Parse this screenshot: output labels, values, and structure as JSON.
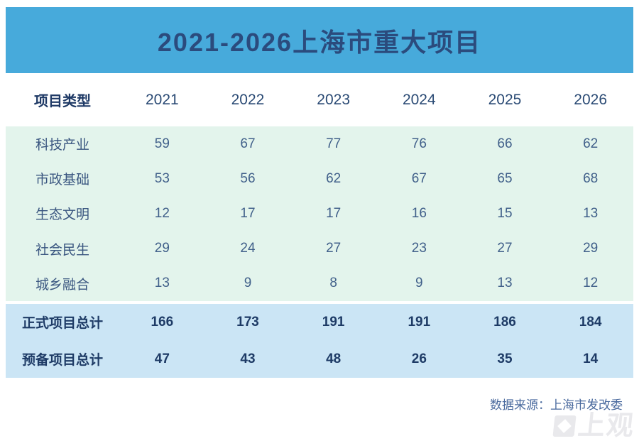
{
  "banner": {
    "title": "2021-2026上海市重大项目"
  },
  "chart_data": {
    "type": "table",
    "title": "2021-2026上海市重大项目",
    "columns": [
      "项目类型",
      "2021",
      "2022",
      "2023",
      "2024",
      "2025",
      "2026"
    ],
    "rows": [
      {
        "label": "科技产业",
        "values": [
          59,
          67,
          77,
          76,
          66,
          62
        ]
      },
      {
        "label": "市政基础",
        "values": [
          53,
          56,
          62,
          67,
          65,
          68
        ]
      },
      {
        "label": "生态文明",
        "values": [
          12,
          17,
          17,
          16,
          15,
          13
        ]
      },
      {
        "label": "社会民生",
        "values": [
          29,
          24,
          27,
          23,
          27,
          29
        ]
      },
      {
        "label": "城乡融合",
        "values": [
          13,
          9,
          8,
          9,
          13,
          12
        ]
      }
    ],
    "totals": [
      {
        "label": "正式项目总计",
        "values": [
          166,
          173,
          191,
          191,
          186,
          184
        ]
      },
      {
        "label": "预备项目总计",
        "values": [
          47,
          43,
          48,
          26,
          35,
          14
        ]
      }
    ],
    "source_note": "数据来源：上海市发改委",
    "layout": {
      "grid": "off",
      "header_position": "top",
      "totals_position": "bottom"
    }
  },
  "watermark": {
    "text": "上观"
  },
  "colors": {
    "banner_bg": "#47AADB",
    "banner_text": "#2B4B7D",
    "header_text": "#1F3A66",
    "body_bg": "#E3F4EC",
    "body_text": "#41608A",
    "totals_bg": "#CBE5F5",
    "totals_text": "#1E3B66",
    "source_text": "#4A6A9E",
    "watermark_gray": "#E7E7EB"
  }
}
